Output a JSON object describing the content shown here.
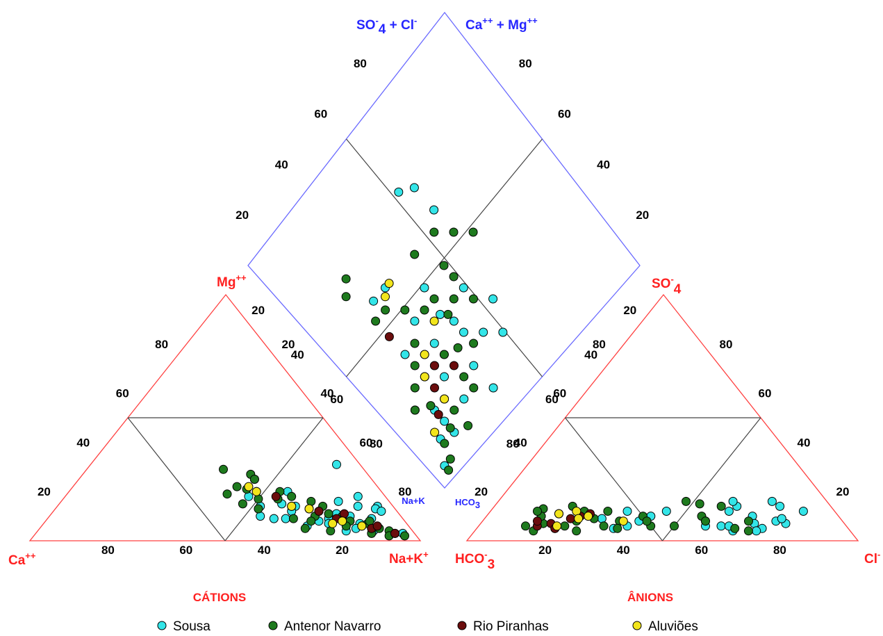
{
  "chart_data": {
    "type": "scatter",
    "subtype": "piper-diagram",
    "cation_triangle": {
      "title": "CÁTIONS",
      "corner_labels": {
        "left": "Ca",
        "left_sup": "++",
        "right": "Na+K",
        "right_sup": "+",
        "top": "Mg",
        "top_sup": "++"
      },
      "bottom_ticks": [
        "80",
        "60",
        "40",
        "20"
      ],
      "left_ticks": [
        "20",
        "40",
        "60",
        "80"
      ],
      "right_ticks": [
        "20",
        "40",
        "60",
        "80"
      ],
      "axis_range": [
        0,
        100
      ]
    },
    "anion_triangle": {
      "title": "ÂNIONS",
      "corner_labels": {
        "left": "HCO",
        "left_sub": "3",
        "left_sup": "-",
        "right": "Cl",
        "right_sup": "-",
        "top": "SO",
        "top_sub": "4",
        "top_sup": "-"
      },
      "bottom_ticks": [
        "20",
        "40",
        "60",
        "80"
      ],
      "left_ticks": [
        "20",
        "40",
        "60",
        "80"
      ],
      "right_ticks": [
        "80",
        "60",
        "40",
        "20"
      ],
      "axis_range": [
        0,
        100
      ]
    },
    "diamond": {
      "top_left_label": "SO",
      "top_left_sub": "4",
      "top_left_sup": "-",
      "top_left_rest": "+ Cl",
      "top_left_rest_sup": "-",
      "top_right_label": "Ca",
      "top_right_sup": "++",
      "top_right_rest": "+  Mg",
      "top_right_rest_sup": "++",
      "bottom_left_label": "Na+K",
      "bottom_right_label": "HCO",
      "bottom_right_sub": "3",
      "left_ticks": [
        "80",
        "60",
        "40",
        "20",
        "20",
        "40",
        "60",
        "80"
      ],
      "right_ticks": [
        "80",
        "60",
        "40",
        "20",
        "20",
        "40",
        "60",
        "80"
      ]
    },
    "legend": [
      {
        "name": "Sousa",
        "color": "#33e5e8"
      },
      {
        "name": "Antenor Navarro",
        "color": "#1e7a1e"
      },
      {
        "name": "Rio Piranhas",
        "color": "#6b0d0d"
      },
      {
        "name": "Aluviões",
        "color": "#f2e51c"
      }
    ],
    "series": [
      {
        "name": "Sousa",
        "cations_CaMg_pct": [
          [
            6,
            31
          ],
          [
            7,
            18
          ],
          [
            4,
            14
          ],
          [
            5,
            13
          ],
          [
            4,
            12
          ],
          [
            9,
            14
          ],
          [
            8,
            9
          ],
          [
            13,
            10
          ],
          [
            16,
            11
          ],
          [
            13,
            16
          ],
          [
            12,
            7
          ],
          [
            19,
            9
          ],
          [
            20,
            12
          ],
          [
            25,
            14
          ],
          [
            27,
            12
          ],
          [
            24,
            20
          ],
          [
            30,
            25
          ],
          [
            28,
            15
          ],
          [
            33,
            9
          ],
          [
            35,
            18
          ],
          [
            14,
            5
          ],
          [
            22,
            8
          ],
          [
            30,
            9
          ],
          [
            10,
            4
          ],
          [
            36,
            10
          ],
          [
            26,
            6
          ],
          [
            3,
            3
          ],
          [
            17,
            4
          ],
          [
            20,
            7
          ],
          [
            34,
            14
          ]
        ],
        "anions_HCO3Cl_pct": [
          [
            62,
            6
          ],
          [
            62,
            14
          ],
          [
            68,
            10
          ],
          [
            60,
            16
          ],
          [
            57,
            8
          ],
          [
            61,
            12
          ],
          [
            70,
            16
          ],
          [
            75,
            8
          ],
          [
            73,
            14
          ],
          [
            80,
            12
          ],
          [
            70,
            7
          ],
          [
            73,
            5
          ],
          [
            45,
            12
          ],
          [
            42,
            10
          ],
          [
            40,
            8
          ],
          [
            38,
            6
          ],
          [
            35,
            5
          ],
          [
            30,
            9
          ],
          [
            35,
            12
          ],
          [
            78,
            7
          ],
          [
            72,
            4
          ],
          [
            66,
            4
          ],
          [
            64,
            6
          ],
          [
            58,
            6
          ],
          [
            76,
            9
          ]
        ],
        "diamond_SO4Cl_CaMg_pct": [
          [
            55,
            78
          ],
          [
            60,
            75
          ],
          [
            30,
            60
          ],
          [
            24,
            60
          ],
          [
            40,
            50
          ],
          [
            38,
            40
          ],
          [
            30,
            35
          ],
          [
            25,
            35
          ],
          [
            20,
            30
          ],
          [
            30,
            30
          ],
          [
            20,
            20
          ],
          [
            15,
            15
          ],
          [
            10,
            12
          ],
          [
            15,
            10
          ],
          [
            40,
            30
          ],
          [
            45,
            25
          ],
          [
            50,
            20
          ],
          [
            25,
            25
          ],
          [
            5,
            5
          ],
          [
            35,
            20
          ],
          [
            60,
            65
          ],
          [
            30,
            45
          ],
          [
            40,
            35
          ],
          [
            50,
            40
          ],
          [
            55,
            30
          ],
          [
            10,
            25
          ],
          [
            15,
            20
          ],
          [
            25,
            15
          ],
          [
            35,
            10
          ],
          [
            20,
            40
          ]
        ]
      },
      {
        "name": "Antenor Navarro",
        "cations_CaMg_pct": [
          [
            36,
            29
          ],
          [
            30,
            27
          ],
          [
            34,
            21
          ],
          [
            36,
            22
          ],
          [
            30,
            25
          ],
          [
            32,
            20
          ],
          [
            28,
            17
          ],
          [
            26,
            14
          ],
          [
            24,
            18
          ],
          [
            22,
            13
          ],
          [
            20,
            16
          ],
          [
            18,
            11
          ],
          [
            15,
            10
          ],
          [
            14,
            8
          ],
          [
            12,
            6
          ],
          [
            8,
            5
          ],
          [
            10,
            7
          ],
          [
            6,
            4
          ],
          [
            7,
            2
          ],
          [
            5,
            3
          ],
          [
            3,
            2
          ],
          [
            16,
            6
          ],
          [
            22,
            10
          ],
          [
            28,
            9
          ],
          [
            33,
            17
          ],
          [
            38,
            15
          ],
          [
            18,
            14
          ],
          [
            26,
            20
          ],
          [
            9,
            8
          ],
          [
            11,
            3
          ],
          [
            27,
            5
          ],
          [
            40,
            19
          ],
          [
            24,
            8
          ],
          [
            21,
            4
          ],
          [
            35,
            13
          ]
        ],
        "anions_HCO3Cl_pct": [
          [
            13,
            13
          ],
          [
            16,
            7
          ],
          [
            12,
            6
          ],
          [
            20,
            5
          ],
          [
            24,
            12
          ],
          [
            28,
            9
          ],
          [
            30,
            12
          ],
          [
            32,
            6
          ],
          [
            35,
            8
          ],
          [
            40,
            10
          ],
          [
            44,
            6
          ],
          [
            50,
            6
          ],
          [
            55,
            10
          ],
          [
            58,
            14
          ],
          [
            66,
            5
          ],
          [
            70,
            4
          ],
          [
            14,
            10
          ],
          [
            18,
            11
          ],
          [
            22,
            6
          ],
          [
            26,
            4
          ],
          [
            20,
            14
          ],
          [
            48,
            16
          ],
          [
            52,
            15
          ],
          [
            57,
            8
          ],
          [
            68,
            8
          ],
          [
            42,
            8
          ],
          [
            12,
            12
          ],
          [
            36,
            5
          ],
          [
            24,
            8
          ],
          [
            15,
            4
          ]
        ],
        "diamond_SO4Cl_CaMg_pct": [
          [
            22,
            72
          ],
          [
            18,
            68
          ],
          [
            20,
            55
          ],
          [
            25,
            55
          ],
          [
            30,
            50
          ],
          [
            35,
            45
          ],
          [
            40,
            45
          ],
          [
            45,
            40
          ],
          [
            50,
            35
          ],
          [
            25,
            40
          ],
          [
            20,
            35
          ],
          [
            15,
            30
          ],
          [
            10,
            25
          ],
          [
            15,
            22
          ],
          [
            30,
            30
          ],
          [
            35,
            28
          ],
          [
            40,
            25
          ],
          [
            30,
            20
          ],
          [
            20,
            15
          ],
          [
            10,
            10
          ],
          [
            8,
            5
          ],
          [
            5,
            3
          ],
          [
            45,
            60
          ],
          [
            60,
            55
          ],
          [
            55,
            60
          ],
          [
            65,
            50
          ],
          [
            50,
            50
          ],
          [
            40,
            38
          ],
          [
            25,
            30
          ],
          [
            30,
            15
          ],
          [
            15,
            12
          ],
          [
            20,
            8
          ],
          [
            50,
            45
          ]
        ]
      },
      {
        "name": "Rio Piranhas",
        "cations_CaMg_pct": [
          [
            17,
            9
          ],
          [
            14,
            11
          ],
          [
            28,
            18
          ],
          [
            12,
            6
          ],
          [
            10,
            5
          ],
          [
            5,
            3
          ],
          [
            20,
            12
          ],
          [
            8,
            6
          ]
        ],
        "anions_HCO3Cl_pct": [
          [
            15,
            6
          ],
          [
            18,
            7
          ],
          [
            20,
            5
          ],
          [
            22,
            9
          ],
          [
            24,
            10
          ],
          [
            26,
            11
          ],
          [
            14,
            8
          ]
        ],
        "diamond_SO4Cl_CaMg_pct": [
          [
            20,
            48
          ],
          [
            25,
            30
          ],
          [
            20,
            25
          ],
          [
            30,
            25
          ],
          [
            15,
            18
          ]
        ]
      },
      {
        "name": "Aluviões",
        "cations_CaMg_pct": [
          [
            32,
            20
          ],
          [
            33,
            22
          ],
          [
            22,
            13
          ],
          [
            16,
            8
          ],
          [
            12,
            6
          ],
          [
            19,
            7
          ],
          [
            26,
            14
          ]
        ],
        "anions_HCO3Cl_pct": [
          [
            18,
            11
          ],
          [
            22,
            12
          ],
          [
            24,
            9
          ],
          [
            26,
            10
          ],
          [
            36,
            8
          ],
          [
            20,
            6
          ]
        ],
        "diamond_SO4Cl_CaMg_pct": [
          [
            28,
            58
          ],
          [
            32,
            60
          ],
          [
            35,
            40
          ],
          [
            25,
            35
          ],
          [
            20,
            30
          ],
          [
            20,
            20
          ],
          [
            10,
            15
          ]
        ]
      }
    ]
  }
}
